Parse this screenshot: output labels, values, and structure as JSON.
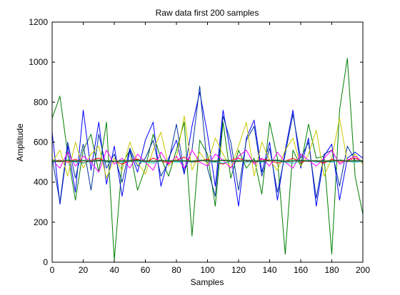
{
  "chart_data": {
    "type": "line",
    "title": "Raw data first 200 samples",
    "xlabel": "Samples",
    "ylabel": "Amplitude",
    "xlim": [
      0,
      200
    ],
    "ylim": [
      0,
      1200
    ],
    "xticks": [
      "0",
      "20",
      "40",
      "60",
      "80",
      "100",
      "120",
      "140",
      "160",
      "180",
      "200"
    ],
    "yticks": [
      "0",
      "200",
      "400",
      "600",
      "800",
      "1000",
      "1200"
    ],
    "grid": false,
    "legend": "none",
    "x": [
      0,
      5,
      10,
      15,
      20,
      25,
      30,
      35,
      40,
      45,
      50,
      55,
      60,
      65,
      70,
      75,
      80,
      85,
      90,
      95,
      100,
      105,
      110,
      115,
      120,
      125,
      130,
      135,
      140,
      145,
      150,
      155,
      160,
      165,
      170,
      175,
      180,
      185,
      190,
      195,
      200
    ],
    "series": [
      {
        "color": "#008000",
        "values": [
          720,
          830,
          540,
          310,
          560,
          640,
          450,
          700,
          10,
          490,
          560,
          360,
          470,
          640,
          520,
          430,
          560,
          700,
          130,
          610,
          540,
          280,
          700,
          420,
          560,
          470,
          520,
          340,
          700,
          520,
          40,
          560,
          480,
          690,
          520,
          530,
          40,
          760,
          1020,
          430,
          240
        ]
      },
      {
        "color": "#0000ff",
        "values": [
          650,
          290,
          580,
          350,
          760,
          460,
          700,
          390,
          580,
          330,
          560,
          450,
          610,
          700,
          380,
          520,
          610,
          440,
          680,
          850,
          640,
          380,
          760,
          540,
          280,
          620,
          710,
          450,
          600,
          310,
          560,
          760,
          470,
          620,
          280,
          530,
          590,
          310,
          520,
          550,
          520
        ]
      },
      {
        "color": "#003399",
        "values": [
          520,
          300,
          600,
          420,
          590,
          360,
          640,
          470,
          540,
          400,
          570,
          480,
          520,
          610,
          430,
          500,
          690,
          450,
          560,
          880,
          470,
          330,
          730,
          600,
          360,
          610,
          680,
          430,
          570,
          350,
          540,
          740,
          520,
          600,
          320,
          540,
          560,
          380,
          580,
          510,
          500
        ]
      },
      {
        "color": "#c8c800",
        "values": [
          500,
          560,
          430,
          600,
          470,
          540,
          580,
          420,
          520,
          460,
          600,
          500,
          440,
          560,
          650,
          480,
          520,
          730,
          460,
          550,
          490,
          620,
          540,
          470,
          580,
          700,
          430,
          600,
          510,
          460,
          560,
          620,
          480,
          540,
          660,
          430,
          520,
          720,
          500,
          540,
          490
        ]
      },
      {
        "color": "#ff0000",
        "values": [
          505,
          510,
          500,
          515,
          495,
          510,
          520,
          500,
          505,
          490,
          510,
          515,
          500,
          520,
          505,
          495,
          510,
          525,
          500,
          505,
          515,
          500,
          490,
          510,
          520,
          505,
          500,
          515,
          510,
          495,
          505,
          520,
          500,
          510,
          505,
          495,
          515,
          500,
          510,
          520,
          505
        ]
      },
      {
        "color": "#ff00ff",
        "values": [
          510,
          470,
          550,
          480,
          530,
          500,
          450,
          560,
          490,
          520,
          470,
          540,
          500,
          460,
          550,
          490,
          530,
          470,
          560,
          500,
          480,
          540,
          510,
          470,
          530,
          560,
          490,
          520,
          480,
          550,
          500,
          470,
          540,
          510,
          480,
          520,
          560,
          490,
          510,
          530,
          500
        ]
      },
      {
        "color": "#00bfbf",
        "values": [
          500,
          505,
          510,
          500,
          495,
          505,
          510,
          500,
          505,
          500,
          510,
          505,
          500,
          495,
          505,
          510,
          500,
          505,
          500,
          510,
          505,
          500,
          495,
          505,
          510,
          500,
          505,
          500,
          510,
          505,
          500,
          495,
          505,
          510,
          500,
          505,
          500,
          510,
          505,
          500,
          505
        ]
      },
      {
        "color": "#404040",
        "values": [
          505,
          502,
          508,
          504,
          506,
          503,
          507,
          505,
          502,
          506,
          504,
          508,
          505,
          503,
          507,
          504,
          506,
          505,
          503,
          507,
          506,
          504,
          508,
          505,
          503,
          507,
          505,
          504,
          506,
          508,
          503,
          505,
          507,
          504,
          506,
          503,
          505,
          508,
          504,
          506,
          505
        ]
      },
      {
        "color": "#1f7a1f",
        "values": [
          508,
          505,
          510,
          507,
          509,
          506,
          511,
          508,
          505,
          509,
          507,
          511,
          508,
          506,
          510,
          507,
          509,
          508,
          506,
          510,
          509,
          507,
          511,
          508,
          506,
          510,
          508,
          507,
          509,
          511,
          506,
          508,
          510,
          507,
          509,
          506,
          508,
          511,
          507,
          509,
          508
        ]
      }
    ]
  }
}
